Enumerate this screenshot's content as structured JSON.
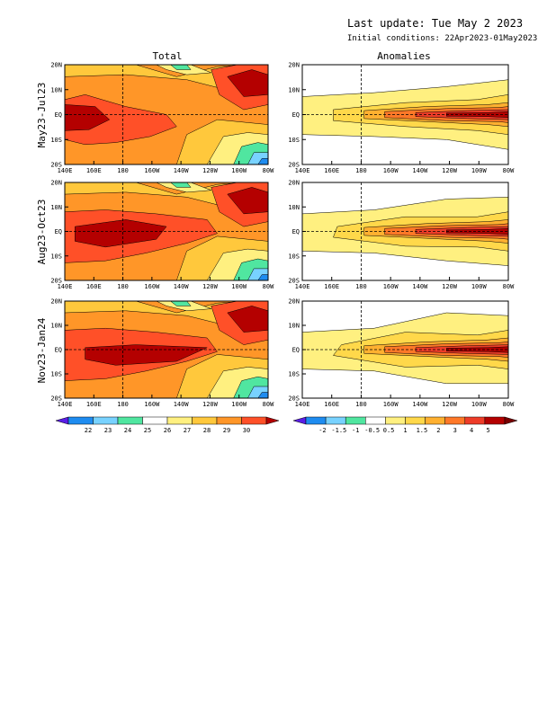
{
  "header": {
    "last_update": "Last update: Tue May 2 2023",
    "initial_conditions": "Initial conditions: 22Apr2023-01May2023"
  },
  "columns": [
    {
      "title": "Total"
    },
    {
      "title": "Anomalies"
    }
  ],
  "rows": [
    {
      "label": "May23-Jul23"
    },
    {
      "label": "Aug23-Oct23"
    },
    {
      "label": "Nov23-Jan24"
    }
  ],
  "axes": {
    "y_ticks": [
      "20N",
      "10N",
      "EQ",
      "10S",
      "20S"
    ],
    "x_ticks": [
      "140E",
      "160E",
      "180",
      "160W",
      "140W",
      "120W",
      "100W",
      "80W"
    ]
  },
  "colors": {
    "total_scale": [
      "#5a1ee6",
      "#1e8cf0",
      "#78d2ff",
      "#50e6a0",
      "#ffffff",
      "#fff080",
      "#ffc83c",
      "#ff9628",
      "#ff5028",
      "#b40000"
    ],
    "anomaly_scale": [
      "#5a1ee6",
      "#1e8cf0",
      "#78d2ff",
      "#50e6a0",
      "#ffffff",
      "#fff080",
      "#ffd84a",
      "#ffb030",
      "#ff7828",
      "#ee3c28",
      "#b40000",
      "#780000"
    ]
  },
  "colorbars": {
    "total": {
      "labels": [
        "22",
        "23",
        "24",
        "25",
        "26",
        "27",
        "28",
        "29",
        "30"
      ]
    },
    "anomaly": {
      "labels": [
        "-2",
        "-1.5",
        "-1",
        "-0.5",
        "0.5",
        "1",
        "1.5",
        "2",
        "3",
        "4",
        "5"
      ]
    }
  },
  "chart_data": {
    "type": "heatmap",
    "fields": [
      {
        "panel": "total",
        "row": 0,
        "description_values": {
          "warm_pool_west_sst_c": 30,
          "east_equatorial_sst_c": 27,
          "southeast_sst_c": 23
        }
      },
      {
        "panel": "total",
        "row": 1,
        "description_values": {
          "warm_pool_west_sst_c": 30,
          "east_equatorial_sst_c": 28,
          "southeast_sst_c": 23
        }
      },
      {
        "panel": "total",
        "row": 2,
        "description_values": {
          "warm_pool_west_sst_c": 30,
          "east_equatorial_sst_c": 28,
          "southeast_sst_c": 25
        }
      },
      {
        "panel": "anomaly",
        "row": 0,
        "description_values": {
          "east_equatorial_max_c": 3,
          "central_equatorial_c": 1
        }
      },
      {
        "panel": "anomaly",
        "row": 1,
        "description_values": {
          "east_equatorial_max_c": 3,
          "central_equatorial_c": 2
        }
      },
      {
        "panel": "anomaly",
        "row": 2,
        "description_values": {
          "east_equatorial_max_c": 4,
          "central_equatorial_c": 2
        }
      }
    ]
  }
}
